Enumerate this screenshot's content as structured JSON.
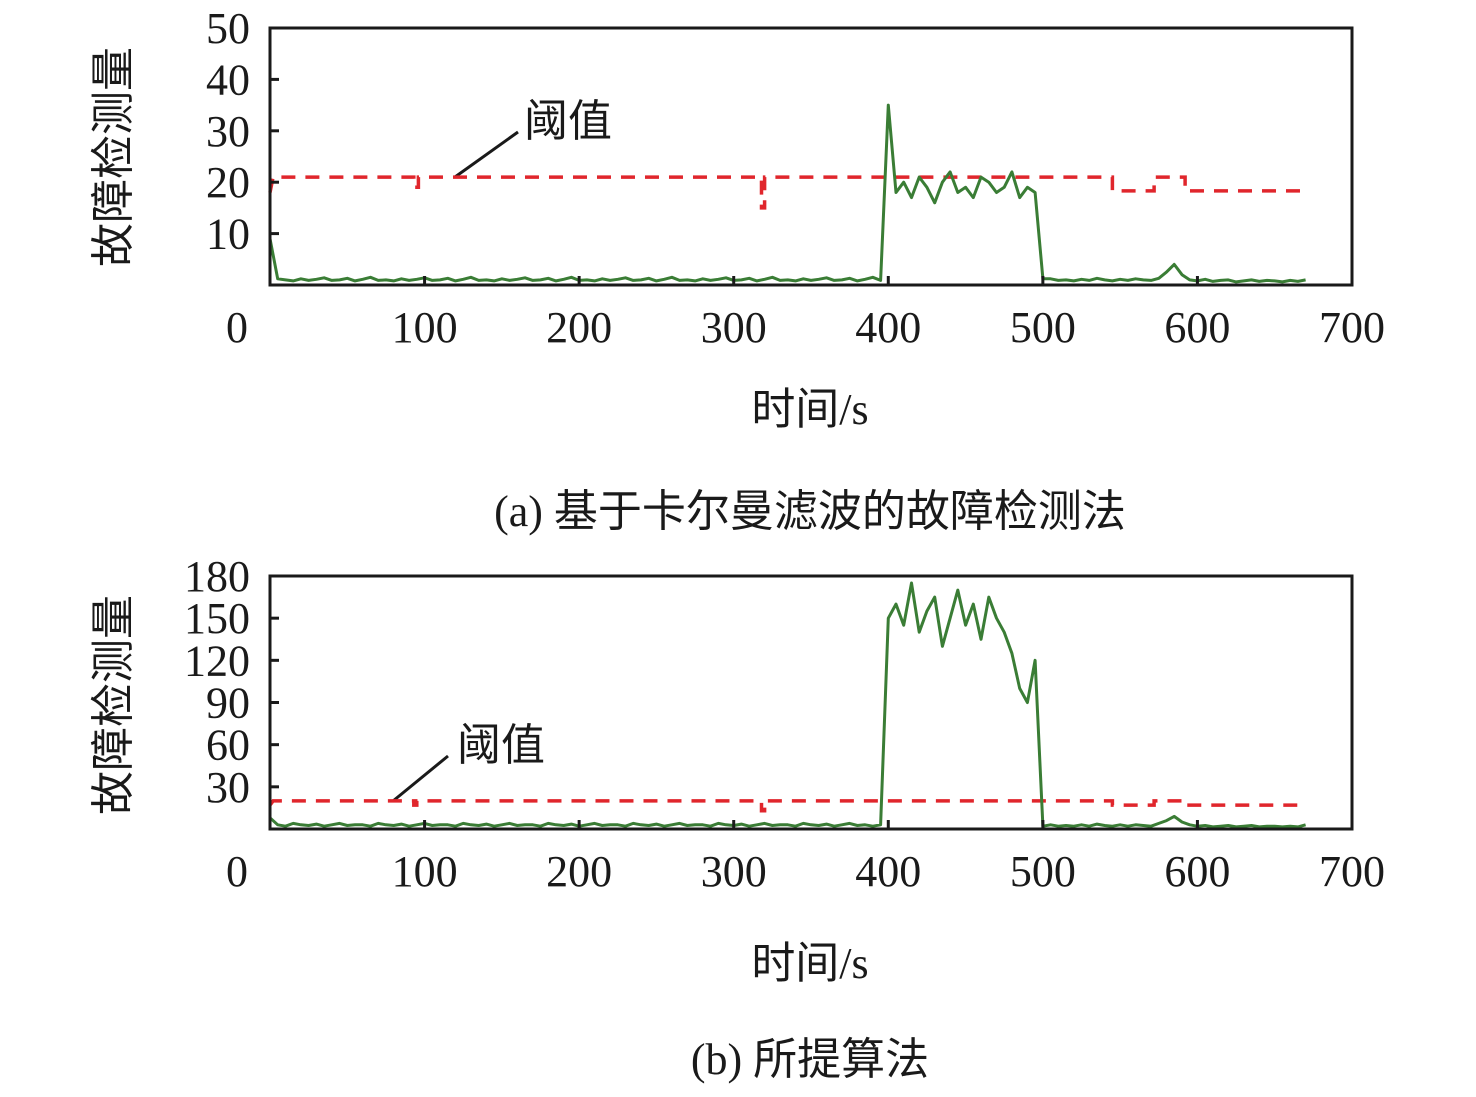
{
  "chart_data": [
    {
      "type": "line",
      "caption": "(a) 基于卡尔曼滤波的故障检测法",
      "xlabel": "时间/s",
      "ylabel": "故障检测量",
      "xlim": [
        0,
        700
      ],
      "ylim": [
        0,
        50
      ],
      "xticks": [
        "0",
        "100",
        "200",
        "300",
        "400",
        "500",
        "600",
        "700"
      ],
      "yticks": [
        "10",
        "20",
        "30",
        "40",
        "50"
      ],
      "annotation": "阈值",
      "grid": false,
      "colors": {
        "detection": "#3a7d35",
        "threshold": "#e0262c"
      },
      "detection": {
        "x_start": 0,
        "x_step": 5,
        "values": [
          9,
          1.2,
          1.0,
          0.8,
          1.2,
          0.9,
          1.1,
          1.4,
          0.9,
          1.0,
          1.3,
          0.8,
          1.1,
          1.5,
          0.9,
          1.0,
          0.8,
          1.2,
          0.9,
          1.1,
          1.4,
          0.9,
          1.0,
          1.3,
          0.8,
          1.1,
          1.5,
          0.9,
          1.0,
          0.8,
          1.2,
          0.9,
          1.1,
          1.4,
          0.9,
          1.0,
          1.3,
          0.8,
          1.1,
          1.5,
          0.9,
          1.0,
          0.8,
          1.2,
          0.9,
          1.1,
          1.4,
          0.9,
          1.0,
          1.3,
          0.8,
          1.1,
          1.5,
          0.9,
          1.0,
          0.8,
          1.2,
          0.9,
          1.1,
          1.4,
          0.9,
          1.0,
          1.3,
          0.8,
          1.1,
          1.5,
          0.9,
          1.0,
          0.8,
          1.2,
          0.9,
          1.1,
          1.4,
          0.9,
          1.0,
          1.3,
          0.8,
          1.1,
          1.5,
          0.9,
          35,
          18,
          20,
          17,
          21,
          19,
          16,
          20,
          22,
          18,
          19,
          17,
          21,
          20,
          18,
          19,
          22,
          17,
          19,
          18,
          1.2,
          1.2,
          0.9,
          1.0,
          0.8,
          1.1,
          0.9,
          1.3,
          1.0,
          0.8,
          1.1,
          0.9,
          1.2,
          1.0,
          0.9,
          1.3,
          2.5,
          4.0,
          2.0,
          1.0,
          0.8,
          1.1,
          0.7,
          0.9,
          1.0,
          0.6,
          0.8,
          1.0,
          0.7,
          0.9,
          0.8,
          0.6,
          0.9,
          0.7,
          1.0
        ]
      },
      "threshold_steps": [
        [
          0,
          18
        ],
        [
          2,
          21
        ],
        [
          93,
          21
        ],
        [
          93,
          19
        ],
        [
          96,
          19
        ],
        [
          96,
          21
        ],
        [
          318,
          21
        ],
        [
          318,
          15
        ],
        [
          320,
          15
        ],
        [
          320,
          21
        ],
        [
          545,
          21
        ],
        [
          545,
          18.3
        ],
        [
          572,
          18.3
        ],
        [
          572,
          21
        ],
        [
          592,
          21
        ],
        [
          592,
          18.3
        ],
        [
          670,
          18.3
        ]
      ]
    },
    {
      "type": "line",
      "caption": "(b) 所提算法",
      "xlabel": "时间/s",
      "ylabel": "故障检测量",
      "xlim": [
        0,
        700
      ],
      "ylim": [
        0,
        180
      ],
      "xticks": [
        "0",
        "100",
        "200",
        "300",
        "400",
        "500",
        "600",
        "700"
      ],
      "yticks": [
        "30",
        "60",
        "90",
        "120",
        "150",
        "180"
      ],
      "annotation": "阈值",
      "grid": false,
      "colors": {
        "detection": "#3a7d35",
        "threshold": "#e0262c"
      },
      "detection": {
        "x_start": 0,
        "x_step": 5,
        "values": [
          8,
          3,
          2,
          4,
          3,
          2.5,
          3.5,
          2,
          3,
          4,
          2.5,
          3,
          3,
          2,
          4,
          3,
          2.5,
          3.5,
          2,
          3,
          4,
          2.5,
          3,
          3,
          2,
          4,
          3,
          2.5,
          3.5,
          2,
          3,
          4,
          2.5,
          3,
          3,
          2,
          4,
          3,
          2.5,
          3.5,
          2,
          3,
          4,
          2.5,
          3,
          3,
          2,
          4,
          3,
          2.5,
          3.5,
          2,
          3,
          4,
          2.5,
          3,
          3,
          2,
          4,
          3,
          2.5,
          3.5,
          2,
          3,
          4,
          2.5,
          3,
          3,
          2,
          4,
          3,
          2.5,
          3.5,
          2,
          3,
          4,
          2.5,
          3,
          2,
          3,
          150,
          160,
          145,
          175,
          140,
          155,
          165,
          130,
          150,
          170,
          145,
          160,
          135,
          165,
          150,
          140,
          125,
          100,
          90,
          120,
          2,
          3,
          2,
          2.5,
          2,
          3,
          2,
          3.5,
          2.5,
          2,
          3,
          2,
          3,
          2.5,
          2,
          4,
          6,
          9,
          5,
          3,
          2,
          2.5,
          1.5,
          2,
          2.5,
          1.5,
          2,
          2.5,
          1.5,
          2,
          2,
          1.5,
          2,
          1.5,
          3
        ]
      },
      "threshold_steps": [
        [
          0,
          17
        ],
        [
          2,
          20
        ],
        [
          93,
          20
        ],
        [
          93,
          17
        ],
        [
          95,
          17
        ],
        [
          95,
          20
        ],
        [
          318,
          20
        ],
        [
          318,
          13
        ],
        [
          320,
          13
        ],
        [
          320,
          20
        ],
        [
          545,
          20
        ],
        [
          545,
          17
        ],
        [
          572,
          17
        ],
        [
          572,
          20
        ],
        [
          590,
          20
        ],
        [
          590,
          17
        ],
        [
          670,
          17
        ]
      ]
    }
  ]
}
